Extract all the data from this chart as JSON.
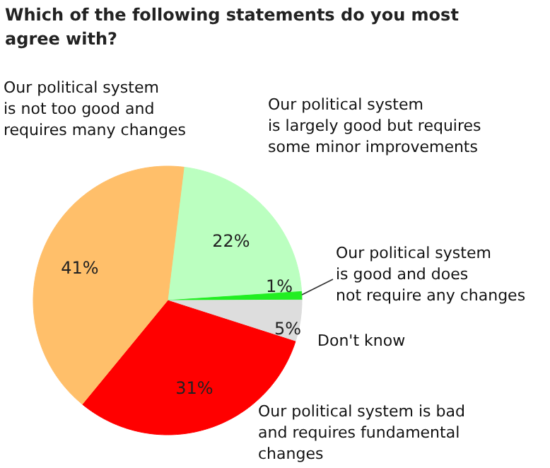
{
  "chart_data": {
    "type": "pie",
    "title": "Which of the following statements do you most\nagree with?",
    "categories": [
      "Our political system\nis largely good but requires\nsome minor improvements",
      "Our political system\nis good and does\nnot require any changes",
      "Don't know",
      "Our political system is bad\nand requires fundamental\nchanges",
      "Our political system\nis not too good and\nrequires many changes"
    ],
    "values": [
      22,
      1,
      5,
      31,
      41
    ],
    "colors": [
      "#bbffc0",
      "#22ee22",
      "#dddddd",
      "#ff0000",
      "#ffbf6a"
    ],
    "value_labels": [
      "22%",
      "1%",
      "5%",
      "31%",
      "41%"
    ]
  }
}
